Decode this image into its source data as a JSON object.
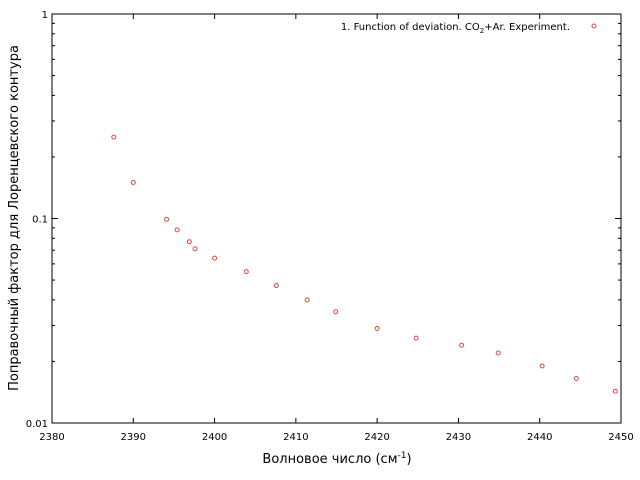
{
  "chart_data": {
    "type": "scatter",
    "title": "",
    "xlabel": "Волновое число (см",
    "xlabel_sup": "-1",
    "xlabel_end": ")",
    "ylabel": "Поправочный фактор для Лоренцевского контура",
    "xlim": [
      2380,
      2450
    ],
    "ylim": [
      0.01,
      1
    ],
    "yscale": "log",
    "grid": false,
    "legend_position": "top-right",
    "marker_color": "#e8443a",
    "xticks": [
      "2380",
      "2390",
      "2400",
      "2410",
      "2420",
      "2430",
      "2440",
      "2450"
    ],
    "xtick_values": [
      2380,
      2390,
      2400,
      2410,
      2420,
      2430,
      2440,
      2450
    ],
    "yticks": [
      "0.01",
      "0.1",
      "1"
    ],
    "ytick_values": [
      0.01,
      0.1,
      1
    ],
    "series": [
      {
        "name": "1. Function of deviation. CO",
        "name_sub": "2",
        "name_end": "+Ar. Experiment.",
        "x": [
          2387.6,
          2390.0,
          2394.1,
          2395.4,
          2396.9,
          2397.6,
          2400.0,
          2403.9,
          2407.6,
          2411.4,
          2414.9,
          2420.0,
          2424.8,
          2430.4,
          2434.9,
          2440.3,
          2444.5,
          2449.3
        ],
        "y": [
          0.25,
          0.15,
          0.099,
          0.088,
          0.077,
          0.071,
          0.064,
          0.055,
          0.047,
          0.04,
          0.035,
          0.029,
          0.026,
          0.024,
          0.022,
          0.019,
          0.0165,
          0.0143
        ]
      }
    ]
  }
}
